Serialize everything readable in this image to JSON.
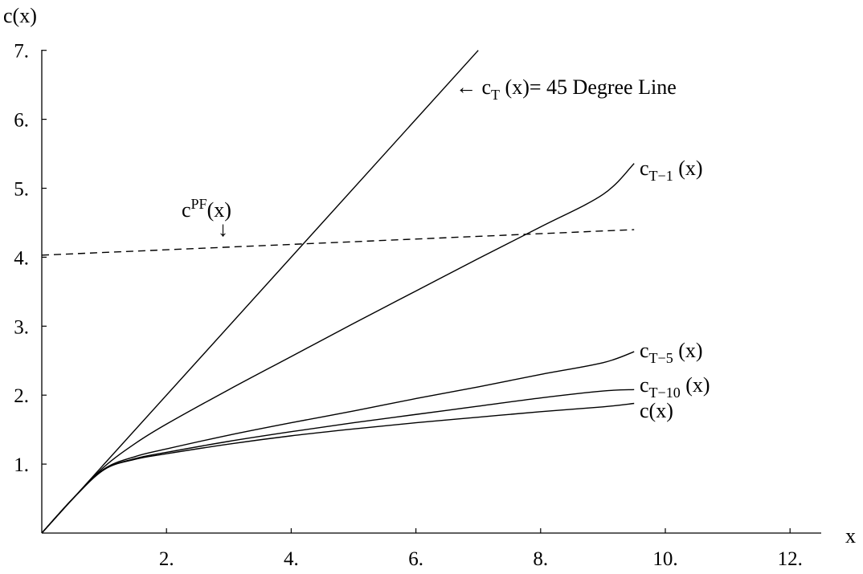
{
  "chart_data": {
    "type": "line",
    "xlabel": "x",
    "ylabel": "c(x)",
    "xlim": [
      0,
      12.5
    ],
    "ylim": [
      0,
      7
    ],
    "x_ticks": [
      2,
      4,
      6,
      8,
      10,
      12
    ],
    "x_tick_labels": [
      "2.",
      "4.",
      "6.",
      "8.",
      "10.",
      "12."
    ],
    "y_ticks": [
      1,
      2,
      3,
      4,
      5,
      6,
      7
    ],
    "y_tick_labels": [
      "1.",
      "2.",
      "3.",
      "4.",
      "5.",
      "6.",
      "7."
    ],
    "grid": false,
    "legend": "none",
    "series": [
      {
        "name": "c_T (x)",
        "label_main": "c",
        "label_sub": "T",
        "label_tail": " (x)",
        "label_prefix": "← ",
        "label_suffix": "= 45 Degree Line",
        "style": "solid",
        "x": [
          0,
          7
        ],
        "y": [
          0,
          7
        ]
      },
      {
        "name": "c_T−1 (x)",
        "label_main": "c",
        "label_sub": "T−1",
        "label_tail": " (x)",
        "style": "solid",
        "x": [
          0,
          0.5,
          1.0,
          1.5,
          2,
          3,
          4,
          5,
          6,
          7,
          8,
          9,
          9.5
        ],
        "y": [
          0,
          0.5,
          0.96,
          1.3,
          1.58,
          2.08,
          2.56,
          3.04,
          3.51,
          3.98,
          4.44,
          4.91,
          5.36
        ]
      },
      {
        "name": "c_T−5 (x)",
        "label_main": "c",
        "label_sub": "T−5",
        "label_tail": " (x)",
        "style": "solid",
        "x": [
          0,
          0.5,
          1.0,
          1.5,
          2,
          3,
          4,
          5,
          6,
          7,
          8,
          9,
          9.5
        ],
        "y": [
          0,
          0.5,
          0.93,
          1.11,
          1.22,
          1.42,
          1.6,
          1.77,
          1.95,
          2.12,
          2.3,
          2.47,
          2.63
        ]
      },
      {
        "name": "c_T−10 (x)",
        "label_main": "c",
        "label_sub": "T−10",
        "label_tail": " (x)",
        "style": "solid",
        "x": [
          0,
          0.5,
          1.0,
          1.5,
          2,
          3,
          4,
          5,
          6,
          7,
          8,
          9,
          9.5
        ],
        "y": [
          0,
          0.5,
          0.92,
          1.08,
          1.17,
          1.33,
          1.47,
          1.6,
          1.72,
          1.84,
          1.96,
          2.06,
          2.08
        ]
      },
      {
        "name": "c(x)",
        "label_main": "c(x)",
        "style": "solid",
        "x": [
          0,
          0.5,
          1.0,
          1.5,
          2,
          3,
          4,
          5,
          6,
          7,
          8,
          9,
          9.5
        ],
        "y": [
          0,
          0.5,
          0.92,
          1.07,
          1.15,
          1.29,
          1.41,
          1.51,
          1.6,
          1.68,
          1.76,
          1.83,
          1.88
        ]
      },
      {
        "name": "c^PF(x)",
        "label_main": "c",
        "label_sup": "PF",
        "label_tail": "(x)",
        "label_arrow": "↓",
        "style": "dashed",
        "x": [
          0,
          9.5
        ],
        "y": [
          4.03,
          4.4
        ]
      }
    ]
  }
}
